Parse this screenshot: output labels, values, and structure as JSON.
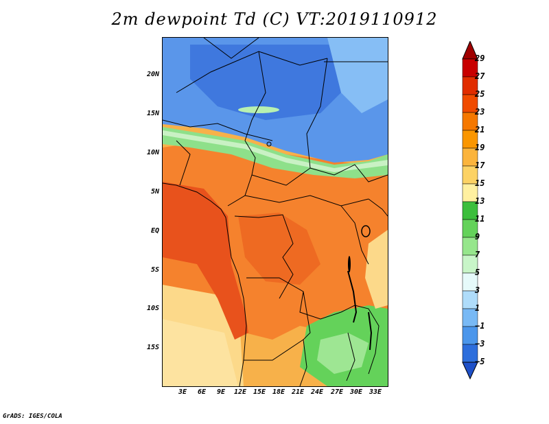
{
  "title": "2m dewpoint Td (C) VT:2019110912",
  "credit": "GrADS: IGES/COLA",
  "axes": {
    "latitude_labels": [
      "20N",
      "15N",
      "10N",
      "5N",
      "EQ",
      "5S",
      "10S",
      "15S"
    ],
    "longitude_labels": [
      "3E",
      "6E",
      "9E",
      "12E",
      "15E",
      "18E",
      "21E",
      "24E",
      "27E",
      "30E",
      "33E"
    ]
  },
  "colorbar": {
    "tick_labels": [
      "29",
      "27",
      "25",
      "23",
      "21",
      "19",
      "17",
      "15",
      "13",
      "11",
      "9",
      "7",
      "5",
      "3",
      "1",
      "−1",
      "−3",
      "−5"
    ],
    "colors": [
      "#a00000",
      "#c80000",
      "#e12d00",
      "#f04b00",
      "#f57800",
      "#fa9600",
      "#fbb43c",
      "#fcd264",
      "#fff0a0",
      "#3cbe3c",
      "#64d25a",
      "#96e68c",
      "#c8f5c8",
      "#e6fafa",
      "#afdcfa",
      "#78b9f5",
      "#4b96eb",
      "#2d6edc",
      "#1e50c8"
    ]
  },
  "legend_colors": {
    "below_zero": "#1e50c8",
    "green_band": "#50c850",
    "warm_band": "#f07828",
    "hot_band": "#e63c14"
  }
}
